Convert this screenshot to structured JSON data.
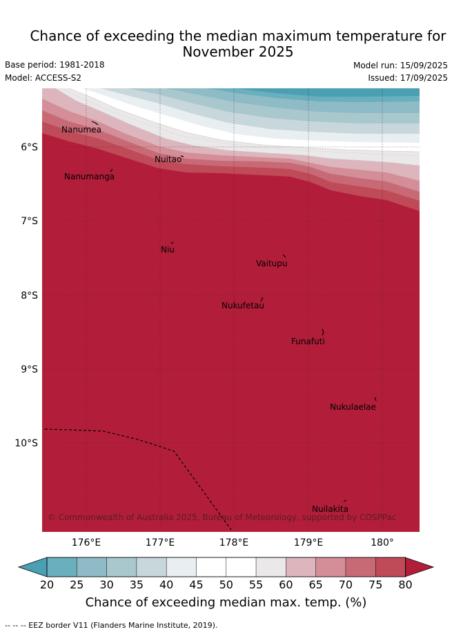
{
  "title": {
    "line1": "Chance of exceeding the median maximum temperature for",
    "line2": "November 2025"
  },
  "meta": {
    "base_period": "Base period: 1981-2018",
    "model": "Model: ACCESS-S2",
    "model_run": "Model run: 15/09/2025",
    "issued": "Issued: 17/09/2025"
  },
  "map": {
    "lat_ticks": [
      "6°S",
      "7°S",
      "8°S",
      "9°S",
      "10°S"
    ],
    "lon_ticks": [
      "176°E",
      "177°E",
      "178°E",
      "179°E",
      "180°"
    ],
    "places": [
      {
        "name": "Nanumea"
      },
      {
        "name": "Nuitao"
      },
      {
        "name": "Nanumanga"
      },
      {
        "name": "Niu"
      },
      {
        "name": "Vaitupu"
      },
      {
        "name": "Nukufetau"
      },
      {
        "name": "Funafuti"
      },
      {
        "name": "Nukulaelae"
      },
      {
        "name": "Nuilakita"
      }
    ],
    "copyright": "© Commonwealth of Australia 2025, Bureau of Meteorology, supported by COSPPac"
  },
  "colorbar": {
    "ticks": [
      "20",
      "25",
      "30",
      "35",
      "40",
      "45",
      "50",
      "55",
      "60",
      "65",
      "70",
      "75",
      "80"
    ],
    "colors": [
      "#6aafbd",
      "#8ebbc6",
      "#a9c8cd",
      "#c8d7dc",
      "#e9eff1",
      "#ffffff",
      "#ffffff",
      "#ebe8ea",
      "#ddb5bd",
      "#d48e98",
      "#c86a76",
      "#bf4a58"
    ],
    "low_extend_color": "#4a9fb3",
    "high_extend_color": "#b21e3a",
    "label": "Chance of exceeding median max. temp. (%)"
  },
  "footnote": "--  --  -- EEZ border V11 (Flanders Marine Institute, 2019)."
}
